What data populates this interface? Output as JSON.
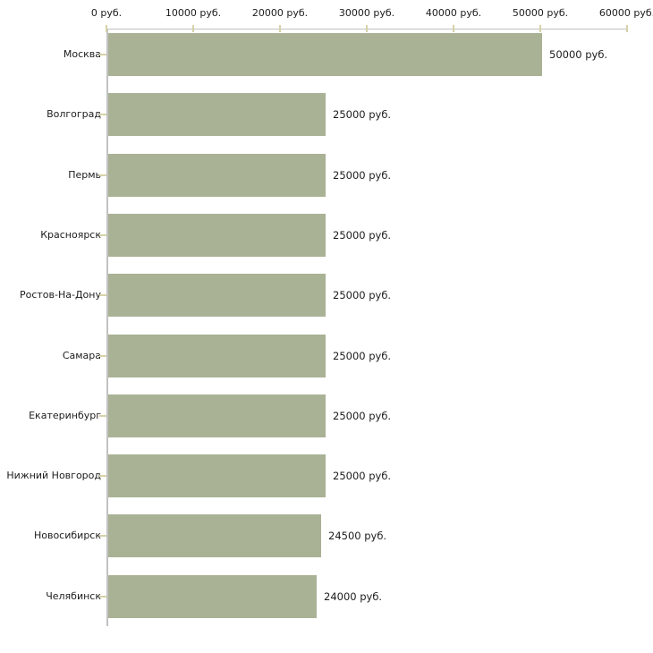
{
  "chart_data": {
    "type": "bar",
    "orientation": "horizontal",
    "title": "",
    "xlabel": "",
    "ylabel": "",
    "unit": "руб.",
    "categories": [
      "Москва",
      "Волгоград",
      "Пермь",
      "Красноярск",
      "Ростов-На-Дону",
      "Самара",
      "Екатеринбург",
      "Нижний Новгород",
      "Новосибирск",
      "Челябинск"
    ],
    "values": [
      50000,
      25000,
      25000,
      25000,
      25000,
      25000,
      25000,
      25000,
      24500,
      24000
    ],
    "value_labels": [
      "50000 руб.",
      "25000 руб.",
      "25000 руб.",
      "25000 руб.",
      "25000 руб.",
      "25000 руб.",
      "25000 руб.",
      "25000 руб.",
      "24500 руб.",
      "24000 руб."
    ],
    "x_ticks": [
      0,
      10000,
      20000,
      30000,
      40000,
      50000,
      60000
    ],
    "x_tick_labels": [
      "0 руб.",
      "10000 руб.",
      "20000 руб.",
      "30000 руб.",
      "40000 руб.",
      "50000 руб.",
      "60000 руб."
    ],
    "xlim": [
      0,
      60000
    ],
    "grid": false,
    "legend": false,
    "colors": {
      "bar": "#a9b295",
      "axis_line": "#c2c2c2",
      "tick_mark": "#d6d2a8",
      "text": "#1c1c1c",
      "background": "#ffffff"
    }
  }
}
